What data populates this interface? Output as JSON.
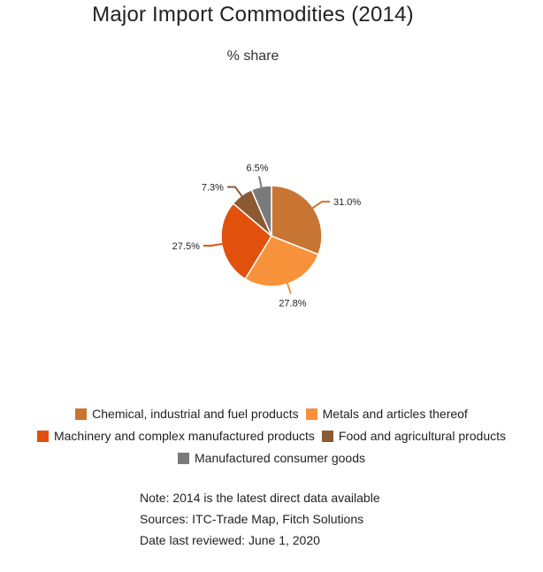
{
  "chart_data": {
    "type": "pie",
    "title": "Major Import Commodities (2014)",
    "subtitle": "% share",
    "slices": [
      {
        "name": "Chemical, industrial and fuel products",
        "value": 31.0,
        "label": "31.0%",
        "color": "#C87533"
      },
      {
        "name": "Metals and articles thereof",
        "value": 27.8,
        "label": "27.8%",
        "color": "#F7923A"
      },
      {
        "name": "Machinery and complex manufactured products",
        "value": 27.5,
        "label": "27.5%",
        "color": "#E2500E"
      },
      {
        "name": "Food and agricultural products",
        "value": 7.3,
        "label": "7.3%",
        "color": "#8B5A32"
      },
      {
        "name": "Manufactured consumer goods",
        "value": 6.5,
        "label": "6.5%",
        "color": "#7A7A7A"
      }
    ],
    "legend_placement": "bottom"
  },
  "notes": {
    "note": "Note: 2014 is the latest direct data available",
    "sources": "Sources: ITC-Trade Map, Fitch Solutions",
    "reviewed": "Date last reviewed: June 1, 2020"
  }
}
